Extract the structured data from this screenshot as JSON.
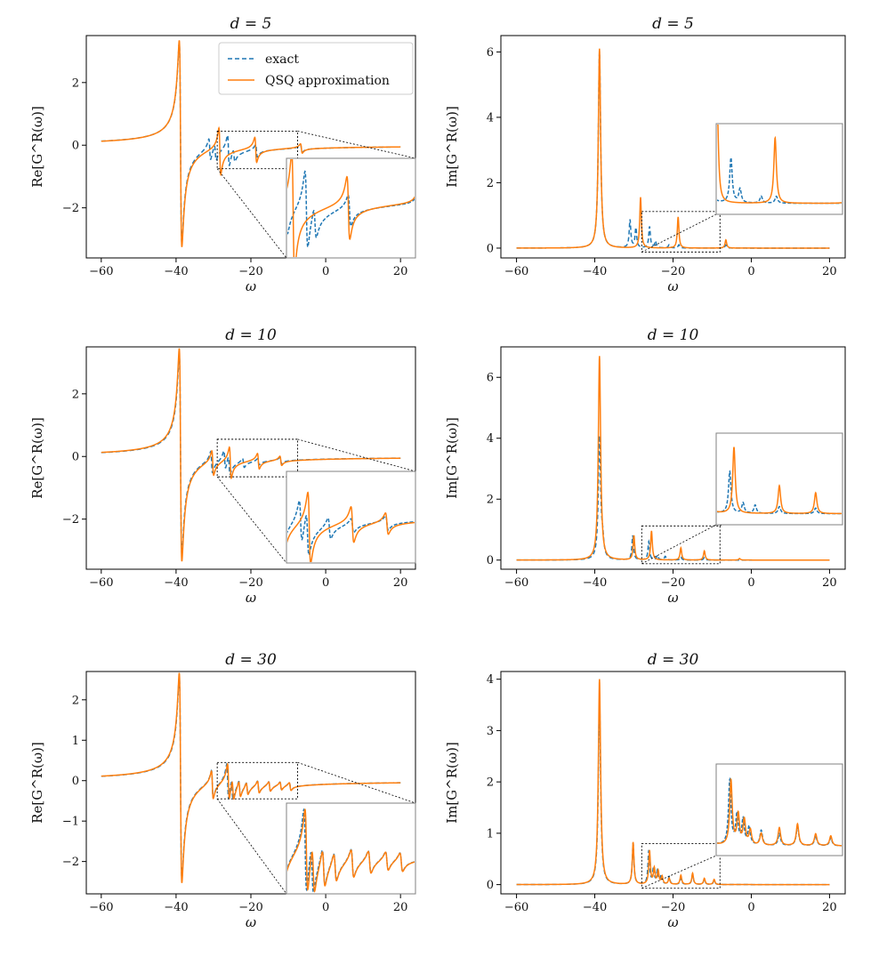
{
  "figure": {
    "colors": {
      "exact": "#1f77b4",
      "qsq": "#ff7f0e",
      "axes": "#000000",
      "inset_frame": "#808080"
    }
  },
  "legend": {
    "entries": [
      "exact",
      "QSQ approximation"
    ]
  },
  "chart_data": [
    {
      "id": "re_d5",
      "type": "line",
      "title": "d = 5",
      "xlabel": "ω",
      "ylabel": "Re[G^R(ω)]",
      "xlim": [
        -64,
        24
      ],
      "ylim": [
        -3.6,
        3.5
      ],
      "xticks": [
        -60,
        -40,
        -20,
        0,
        20
      ],
      "xtick_labels": [
        "−60",
        "−40",
        "−20",
        "0",
        "20"
      ],
      "yticks": [
        -2,
        0,
        2
      ],
      "ytick_labels": [
        "−2",
        "0",
        "2"
      ],
      "series": [
        {
          "name": "exact",
          "style": "dashed",
          "peaks": [
            [
              -38.8,
              3.2
            ],
            [
              -31.0,
              0.35
            ],
            [
              -29.5,
              0.25
            ],
            [
              -26.0,
              0.5
            ],
            [
              -24.5,
              0.2
            ],
            [
              -18.5,
              0.2
            ],
            [
              -6.5,
              0.12
            ]
          ]
        },
        {
          "name": "QSQ approximation",
          "style": "solid",
          "peaks": [
            [
              -38.8,
              3.3
            ],
            [
              -28.3,
              0.75
            ],
            [
              -18.7,
              0.4
            ],
            [
              -6.5,
              0.15
            ]
          ]
        }
      ],
      "zoom_region": {
        "x": [
          -29,
          -7.5
        ],
        "y": [
          -0.75,
          0.45
        ]
      },
      "legend_position": "top-right",
      "has_legend": true
    },
    {
      "id": "im_d5",
      "type": "line",
      "title": "d = 5",
      "xlabel": "ω",
      "ylabel": "Im[G^R(ω)]",
      "xlim": [
        -64,
        24
      ],
      "ylim": [
        -0.3,
        6.5
      ],
      "xticks": [
        -60,
        -40,
        -20,
        0,
        20
      ],
      "xtick_labels": [
        "−60",
        "−40",
        "−20",
        "0",
        "20"
      ],
      "yticks": [
        0,
        2,
        4,
        6
      ],
      "ytick_labels": [
        "0",
        "2",
        "4",
        "6"
      ],
      "series": [
        {
          "name": "exact",
          "style": "dashed",
          "peaks": [
            [
              -38.8,
              6.0
            ],
            [
              -31.0,
              0.85
            ],
            [
              -29.5,
              0.6
            ],
            [
              -26.0,
              0.65
            ],
            [
              -24.5,
              0.2
            ],
            [
              -21.0,
              0.1
            ],
            [
              -18.5,
              0.1
            ],
            [
              -6.5,
              0.1
            ]
          ]
        },
        {
          "name": "QSQ approximation",
          "style": "solid",
          "peaks": [
            [
              -38.8,
              6.1
            ],
            [
              -28.3,
              1.55
            ],
            [
              -18.7,
              0.95
            ],
            [
              -6.5,
              0.25
            ]
          ]
        }
      ],
      "zoom_region": {
        "x": [
          -28,
          -8
        ],
        "y": [
          -0.12,
          1.12
        ]
      },
      "has_legend": false
    },
    {
      "id": "re_d10",
      "type": "line",
      "title": "d = 10",
      "xlabel": "ω",
      "ylabel": "Re[G^R(ω)]",
      "xlim": [
        -64,
        24
      ],
      "ylim": [
        -3.6,
        3.5
      ],
      "xticks": [
        -60,
        -40,
        -20,
        0,
        20
      ],
      "xtick_labels": [
        "−60",
        "−40",
        "−20",
        "0",
        "20"
      ],
      "yticks": [
        -2,
        0,
        2
      ],
      "ytick_labels": [
        "−2",
        "0",
        "2"
      ],
      "series": [
        {
          "name": "exact",
          "style": "dashed",
          "peaks": [
            [
              -38.8,
              3.2
            ],
            [
              -30.5,
              0.35
            ],
            [
              -27.0,
              0.3
            ],
            [
              -25.8,
              0.3
            ],
            [
              -22.0,
              0.15
            ],
            [
              -18.0,
              0.1
            ],
            [
              -12.0,
              0.1
            ]
          ]
        },
        {
          "name": "QSQ approximation",
          "style": "solid",
          "peaks": [
            [
              -38.8,
              3.4
            ],
            [
              -30.2,
              0.4
            ],
            [
              -25.5,
              0.5
            ],
            [
              -18.0,
              0.25
            ],
            [
              -12.0,
              0.15
            ]
          ]
        }
      ],
      "zoom_region": {
        "x": [
          -29,
          -7.5
        ],
        "y": [
          -0.65,
          0.55
        ]
      },
      "has_legend": false
    },
    {
      "id": "im_d10",
      "type": "line",
      "title": "d = 10",
      "xlabel": "ω",
      "ylabel": "Im[G^R(ω)]",
      "xlim": [
        -64,
        24
      ],
      "ylim": [
        -0.3,
        7.0
      ],
      "xticks": [
        -60,
        -40,
        -20,
        0,
        20
      ],
      "xtick_labels": [
        "−60",
        "−40",
        "−20",
        "0",
        "20"
      ],
      "yticks": [
        0,
        2,
        4,
        6
      ],
      "ytick_labels": [
        "0",
        "2",
        "4",
        "6"
      ],
      "series": [
        {
          "name": "exact",
          "style": "dashed",
          "peaks": [
            [
              -38.8,
              4.0
            ],
            [
              -38.0,
              0.5
            ],
            [
              -30.3,
              0.8
            ],
            [
              -26.2,
              0.6
            ],
            [
              -24.0,
              0.15
            ],
            [
              -22.0,
              0.12
            ],
            [
              -18.0,
              0.1
            ],
            [
              -12.0,
              0.08
            ]
          ]
        },
        {
          "name": "QSQ approximation",
          "style": "solid",
          "peaks": [
            [
              -38.8,
              6.7
            ],
            [
              -30.0,
              0.8
            ],
            [
              -25.5,
              0.95
            ],
            [
              -18.0,
              0.4
            ],
            [
              -12.0,
              0.3
            ],
            [
              -3.0,
              0.05
            ]
          ]
        }
      ],
      "zoom_region": {
        "x": [
          -28,
          -8
        ],
        "y": [
          -0.12,
          1.12
        ]
      },
      "has_legend": false
    },
    {
      "id": "re_d30",
      "type": "line",
      "title": "d = 30",
      "xlabel": "ω",
      "ylabel": "Re[G^R(ω)]",
      "xlim": [
        -64,
        24
      ],
      "ylim": [
        -2.8,
        2.7
      ],
      "xticks": [
        -60,
        -40,
        -20,
        0,
        20
      ],
      "xtick_labels": [
        "−60",
        "−40",
        "−20",
        "0",
        "20"
      ],
      "yticks": [
        -2,
        -1,
        0,
        1,
        2
      ],
      "ytick_labels": [
        "−2",
        "−1",
        "0",
        "1",
        "2"
      ],
      "series": [
        {
          "name": "exact",
          "style": "dashed",
          "peaks": [
            [
              -38.8,
              2.5
            ],
            [
              -30.3,
              0.35
            ],
            [
              -26.2,
              0.45
            ],
            [
              -25.0,
              0.25
            ],
            [
              -23.0,
              0.2
            ],
            [
              -21.0,
              0.15
            ],
            [
              -18.0,
              0.15
            ],
            [
              -15.0,
              0.12
            ],
            [
              -12.0,
              0.1
            ],
            [
              -9.5,
              0.1
            ]
          ]
        },
        {
          "name": "QSQ approximation",
          "style": "solid",
          "peaks": [
            [
              -38.8,
              2.6
            ],
            [
              -30.3,
              0.35
            ],
            [
              -26.0,
              0.45
            ],
            [
              -24.8,
              0.25
            ],
            [
              -23.0,
              0.2
            ],
            [
              -21.0,
              0.15
            ],
            [
              -18.0,
              0.15
            ],
            [
              -15.0,
              0.12
            ],
            [
              -12.0,
              0.1
            ],
            [
              -9.5,
              0.1
            ]
          ]
        }
      ],
      "zoom_region": {
        "x": [
          -29,
          -7.5
        ],
        "y": [
          -0.45,
          0.45
        ]
      },
      "has_legend": false
    },
    {
      "id": "im_d30",
      "type": "line",
      "title": "d = 30",
      "xlabel": "ω",
      "ylabel": "Im[G^R(ω)]",
      "xlim": [
        -64,
        24
      ],
      "ylim": [
        -0.18,
        4.15
      ],
      "xticks": [
        -60,
        -40,
        -20,
        0,
        20
      ],
      "xtick_labels": [
        "−60",
        "−40",
        "−20",
        "0",
        "20"
      ],
      "yticks": [
        0,
        1,
        2,
        3,
        4
      ],
      "ytick_labels": [
        "0",
        "1",
        "2",
        "3",
        "4"
      ],
      "series": [
        {
          "name": "exact",
          "style": "dashed",
          "peaks": [
            [
              -38.8,
              3.6
            ],
            [
              -30.2,
              0.8
            ],
            [
              -26.2,
              0.65
            ],
            [
              -25.0,
              0.3
            ],
            [
              -24.0,
              0.25
            ],
            [
              -23.0,
              0.18
            ],
            [
              -21.0,
              0.15
            ],
            [
              -18.0,
              0.12
            ],
            [
              -15.0,
              0.2
            ],
            [
              -12.0,
              0.1
            ],
            [
              -9.5,
              0.08
            ]
          ]
        },
        {
          "name": "QSQ approximation",
          "style": "solid",
          "peaks": [
            [
              -38.8,
              4.0
            ],
            [
              -30.2,
              0.82
            ],
            [
              -26.0,
              0.65
            ],
            [
              -24.8,
              0.3
            ],
            [
              -23.8,
              0.25
            ],
            [
              -22.8,
              0.15
            ],
            [
              -21.0,
              0.12
            ],
            [
              -18.0,
              0.18
            ],
            [
              -15.0,
              0.22
            ],
            [
              -12.0,
              0.12
            ],
            [
              -9.5,
              0.1
            ]
          ]
        }
      ],
      "zoom_region": {
        "x": [
          -28,
          -8
        ],
        "y": [
          -0.07,
          0.8
        ]
      },
      "has_legend": false
    }
  ]
}
